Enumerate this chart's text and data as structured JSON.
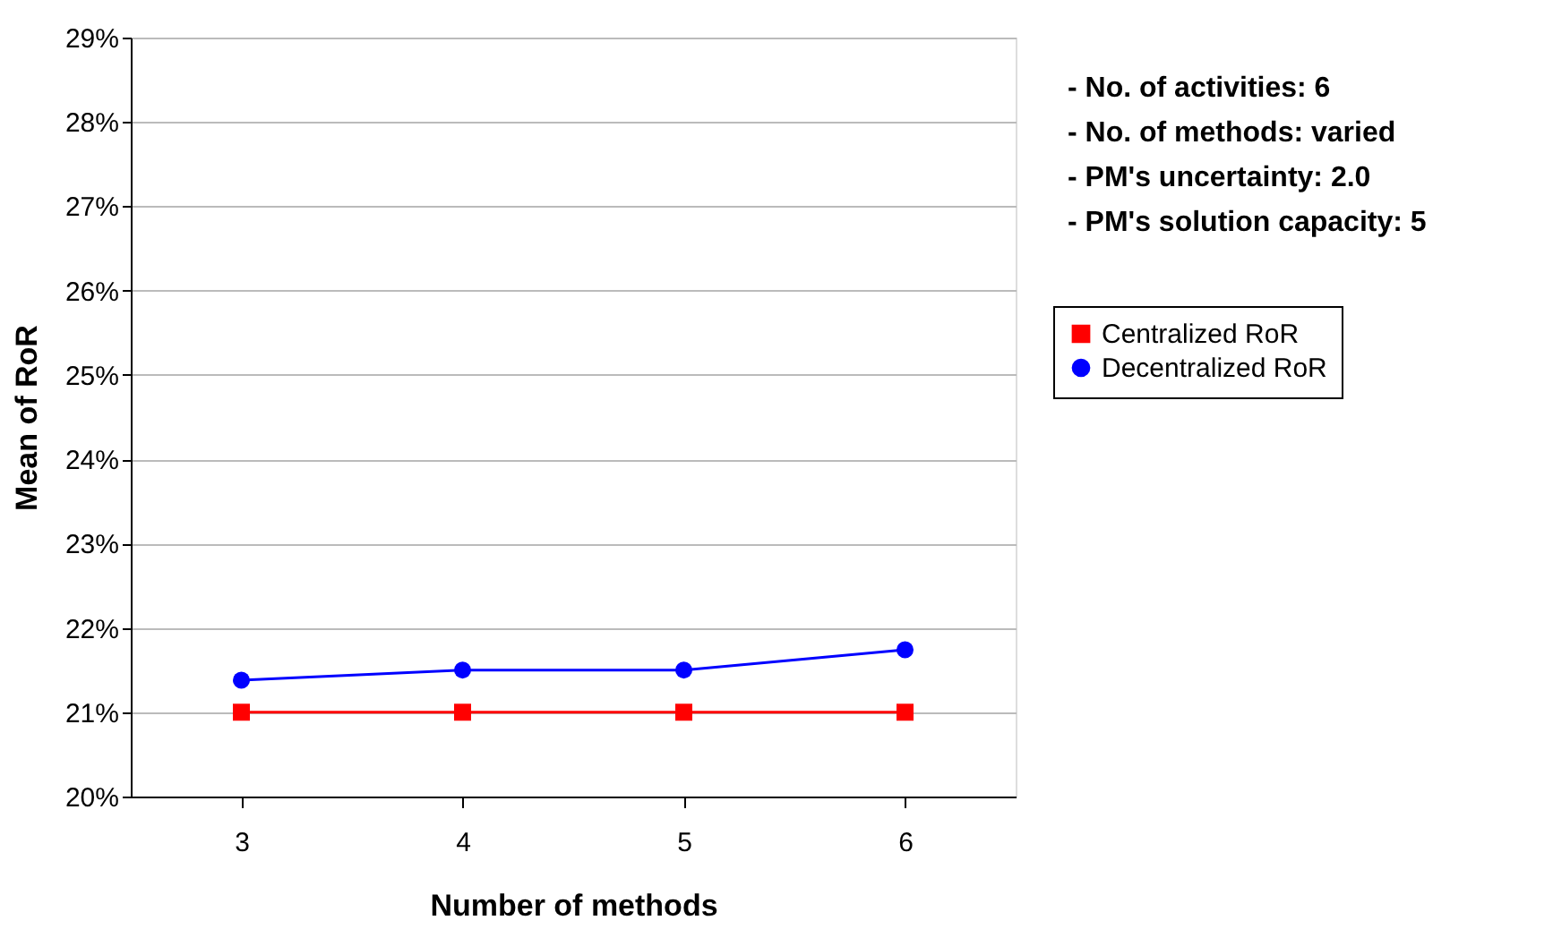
{
  "chart_data": {
    "type": "line",
    "xlabel": "Number of methods",
    "ylabel": "Mean of RoR",
    "categories": [
      "3",
      "4",
      "5",
      "6"
    ],
    "series": [
      {
        "name": "Centralized RoR",
        "color": "#ff0000",
        "marker": "square",
        "values": [
          21.0,
          21.0,
          21.0,
          21.0
        ]
      },
      {
        "name": "Decentralized RoR",
        "color": "#0000ff",
        "marker": "circle",
        "values": [
          21.38,
          21.5,
          21.5,
          21.74
        ]
      }
    ],
    "ylim": [
      20,
      29
    ],
    "yticks": [
      {
        "value": 20,
        "label": "20%"
      },
      {
        "value": 21,
        "label": "21%"
      },
      {
        "value": 22,
        "label": "22%"
      },
      {
        "value": 23,
        "label": "23%"
      },
      {
        "value": 24,
        "label": "24%"
      },
      {
        "value": 25,
        "label": "25%"
      },
      {
        "value": 26,
        "label": "26%"
      },
      {
        "value": 27,
        "label": "27%"
      },
      {
        "value": 28,
        "label": "28%"
      },
      {
        "value": 29,
        "label": "29%"
      }
    ],
    "grid": "y",
    "legend": "right",
    "line_style": "solid",
    "annotations": [
      "- No. of activities: 6",
      "- No. of methods: varied",
      "- PM's uncertainty: 2.0",
      "- PM's solution capacity: 5"
    ]
  }
}
